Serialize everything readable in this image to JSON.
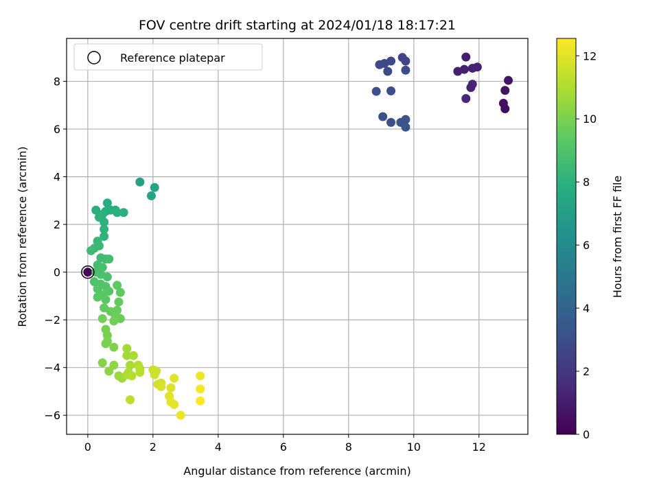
{
  "chart_data": {
    "type": "scatter",
    "title": "FOV centre drift starting at 2024/01/18 18:17:21",
    "xlabel": "Angular distance from reference (arcmin)",
    "ylabel": "Rotation from reference (arcmin)",
    "xlim": [
      -0.65,
      13.5
    ],
    "ylim": [
      -6.8,
      9.8
    ],
    "xticks": [
      0,
      2,
      4,
      6,
      8,
      10,
      12
    ],
    "yticks": [
      -6,
      -4,
      -2,
      0,
      2,
      4,
      6,
      8
    ],
    "grid": true,
    "legend": {
      "placement": "upper-left",
      "label": "Reference platepar"
    },
    "reference_point": {
      "x": 0,
      "y": 0
    },
    "colorbar": {
      "label": "Hours from first FF file",
      "colormap": "viridis",
      "range": [
        0,
        12.55
      ],
      "ticks": [
        0,
        2,
        4,
        6,
        8,
        10,
        12
      ]
    },
    "points": [
      {
        "x": 0.0,
        "y": 0.0,
        "t": 0.2
      },
      {
        "x": 12.8,
        "y": 6.85,
        "t": 0.4
      },
      {
        "x": 12.75,
        "y": 7.08,
        "t": 0.5
      },
      {
        "x": 12.8,
        "y": 7.62,
        "t": 0.6
      },
      {
        "x": 12.9,
        "y": 8.04,
        "t": 0.7
      },
      {
        "x": 11.6,
        "y": 9.02,
        "t": 1.0
      },
      {
        "x": 11.35,
        "y": 8.42,
        "t": 1.1
      },
      {
        "x": 11.55,
        "y": 8.5,
        "t": 1.1
      },
      {
        "x": 11.8,
        "y": 8.55,
        "t": 1.2
      },
      {
        "x": 11.95,
        "y": 8.6,
        "t": 1.2
      },
      {
        "x": 11.75,
        "y": 7.74,
        "t": 1.3
      },
      {
        "x": 11.8,
        "y": 7.88,
        "t": 1.3
      },
      {
        "x": 11.6,
        "y": 7.28,
        "t": 1.4
      },
      {
        "x": 9.65,
        "y": 9.0,
        "t": 2.6
      },
      {
        "x": 9.75,
        "y": 8.85,
        "t": 2.6
      },
      {
        "x": 9.3,
        "y": 8.85,
        "t": 2.7
      },
      {
        "x": 9.1,
        "y": 8.75,
        "t": 2.8
      },
      {
        "x": 8.95,
        "y": 8.7,
        "t": 2.8
      },
      {
        "x": 9.2,
        "y": 8.42,
        "t": 2.9
      },
      {
        "x": 9.75,
        "y": 8.47,
        "t": 2.9
      },
      {
        "x": 8.85,
        "y": 7.58,
        "t": 3.0
      },
      {
        "x": 9.3,
        "y": 7.6,
        "t": 3.0
      },
      {
        "x": 9.05,
        "y": 6.52,
        "t": 3.1
      },
      {
        "x": 9.3,
        "y": 6.28,
        "t": 3.1
      },
      {
        "x": 9.6,
        "y": 6.28,
        "t": 3.2
      },
      {
        "x": 9.75,
        "y": 6.4,
        "t": 3.2
      },
      {
        "x": 9.75,
        "y": 6.08,
        "t": 3.3
      },
      {
        "x": 1.6,
        "y": 3.78,
        "t": 7.2
      },
      {
        "x": 2.05,
        "y": 3.55,
        "t": 7.3
      },
      {
        "x": 1.95,
        "y": 3.2,
        "t": 7.3
      },
      {
        "x": 0.6,
        "y": 2.9,
        "t": 7.7
      },
      {
        "x": 0.25,
        "y": 2.6,
        "t": 7.8
      },
      {
        "x": 0.55,
        "y": 2.55,
        "t": 7.8
      },
      {
        "x": 0.7,
        "y": 2.6,
        "t": 7.8
      },
      {
        "x": 0.85,
        "y": 2.6,
        "t": 7.8
      },
      {
        "x": 0.9,
        "y": 2.5,
        "t": 7.9
      },
      {
        "x": 1.1,
        "y": 2.5,
        "t": 7.9
      },
      {
        "x": 0.45,
        "y": 2.42,
        "t": 7.9
      },
      {
        "x": 0.35,
        "y": 2.3,
        "t": 8.0
      },
      {
        "x": 0.5,
        "y": 2.1,
        "t": 8.0
      },
      {
        "x": 0.5,
        "y": 1.8,
        "t": 8.1
      },
      {
        "x": 0.5,
        "y": 1.5,
        "t": 8.1
      },
      {
        "x": 0.3,
        "y": 1.3,
        "t": 8.3
      },
      {
        "x": 0.2,
        "y": 1.0,
        "t": 8.4
      },
      {
        "x": 0.35,
        "y": 1.1,
        "t": 8.4
      },
      {
        "x": 0.1,
        "y": 0.9,
        "t": 8.5
      },
      {
        "x": 0.4,
        "y": 0.6,
        "t": 8.6
      },
      {
        "x": 0.55,
        "y": 0.55,
        "t": 8.6
      },
      {
        "x": 0.65,
        "y": 0.55,
        "t": 8.7
      },
      {
        "x": 0.3,
        "y": 0.3,
        "t": 8.7
      },
      {
        "x": 0.45,
        "y": 0.2,
        "t": 8.8
      },
      {
        "x": 0.25,
        "y": 0.0,
        "t": 8.8
      },
      {
        "x": 0.4,
        "y": -0.1,
        "t": 8.9
      },
      {
        "x": 0.6,
        "y": -0.2,
        "t": 8.9
      },
      {
        "x": 0.2,
        "y": -0.4,
        "t": 9.0
      },
      {
        "x": 0.4,
        "y": -0.5,
        "t": 9.0
      },
      {
        "x": 0.55,
        "y": -0.6,
        "t": 9.1
      },
      {
        "x": 0.3,
        "y": -0.7,
        "t": 9.1
      },
      {
        "x": 0.65,
        "y": -0.8,
        "t": 9.2
      },
      {
        "x": 0.45,
        "y": -0.95,
        "t": 9.2
      },
      {
        "x": 0.3,
        "y": -1.05,
        "t": 9.3
      },
      {
        "x": 0.55,
        "y": -1.15,
        "t": 9.3
      },
      {
        "x": 0.9,
        "y": -0.55,
        "t": 9.4
      },
      {
        "x": 1.0,
        "y": -0.85,
        "t": 9.4
      },
      {
        "x": 0.95,
        "y": -1.25,
        "t": 9.5
      },
      {
        "x": 0.5,
        "y": -1.5,
        "t": 9.5
      },
      {
        "x": 0.7,
        "y": -1.65,
        "t": 9.6
      },
      {
        "x": 0.9,
        "y": -1.6,
        "t": 9.6
      },
      {
        "x": 0.85,
        "y": -1.85,
        "t": 9.7
      },
      {
        "x": 1.0,
        "y": -1.95,
        "t": 9.7
      },
      {
        "x": 0.45,
        "y": -1.95,
        "t": 9.8
      },
      {
        "x": 0.8,
        "y": -2.05,
        "t": 9.8
      },
      {
        "x": 0.55,
        "y": -2.4,
        "t": 9.9
      },
      {
        "x": 0.6,
        "y": -2.65,
        "t": 9.9
      },
      {
        "x": 0.6,
        "y": -2.9,
        "t": 10.0
      },
      {
        "x": 0.55,
        "y": -3.0,
        "t": 10.0
      },
      {
        "x": 0.8,
        "y": -3.15,
        "t": 10.1
      },
      {
        "x": 0.45,
        "y": -3.8,
        "t": 10.2
      },
      {
        "x": 0.65,
        "y": -4.15,
        "t": 10.3
      },
      {
        "x": 0.8,
        "y": -3.9,
        "t": 10.4
      },
      {
        "x": 0.95,
        "y": -4.35,
        "t": 10.6
      },
      {
        "x": 1.05,
        "y": -4.45,
        "t": 10.7
      },
      {
        "x": 1.2,
        "y": -3.2,
        "t": 10.8
      },
      {
        "x": 1.2,
        "y": -3.5,
        "t": 10.8
      },
      {
        "x": 1.4,
        "y": -3.5,
        "t": 10.9
      },
      {
        "x": 1.3,
        "y": -3.9,
        "t": 10.9
      },
      {
        "x": 1.25,
        "y": -4.2,
        "t": 11.0
      },
      {
        "x": 1.2,
        "y": -4.3,
        "t": 11.0
      },
      {
        "x": 1.35,
        "y": -4.35,
        "t": 11.1
      },
      {
        "x": 1.55,
        "y": -3.9,
        "t": 11.1
      },
      {
        "x": 1.6,
        "y": -4.05,
        "t": 11.2
      },
      {
        "x": 1.6,
        "y": -4.2,
        "t": 11.2
      },
      {
        "x": 1.3,
        "y": -5.35,
        "t": 11.3
      },
      {
        "x": 2.0,
        "y": -4.1,
        "t": 11.5
      },
      {
        "x": 2.1,
        "y": -4.15,
        "t": 11.6
      },
      {
        "x": 2.05,
        "y": -4.3,
        "t": 11.6
      },
      {
        "x": 2.15,
        "y": -4.7,
        "t": 11.7
      },
      {
        "x": 2.25,
        "y": -4.65,
        "t": 11.7
      },
      {
        "x": 2.25,
        "y": -4.8,
        "t": 11.8
      },
      {
        "x": 2.55,
        "y": -4.85,
        "t": 11.9
      },
      {
        "x": 2.65,
        "y": -4.45,
        "t": 12.0
      },
      {
        "x": 2.5,
        "y": -5.2,
        "t": 12.0
      },
      {
        "x": 2.55,
        "y": -5.45,
        "t": 12.1
      },
      {
        "x": 2.65,
        "y": -5.55,
        "t": 12.1
      },
      {
        "x": 2.85,
        "y": -6.0,
        "t": 12.2
      },
      {
        "x": 3.45,
        "y": -4.35,
        "t": 12.3
      },
      {
        "x": 3.45,
        "y": -4.9,
        "t": 12.4
      },
      {
        "x": 3.45,
        "y": -5.4,
        "t": 12.5
      }
    ]
  }
}
